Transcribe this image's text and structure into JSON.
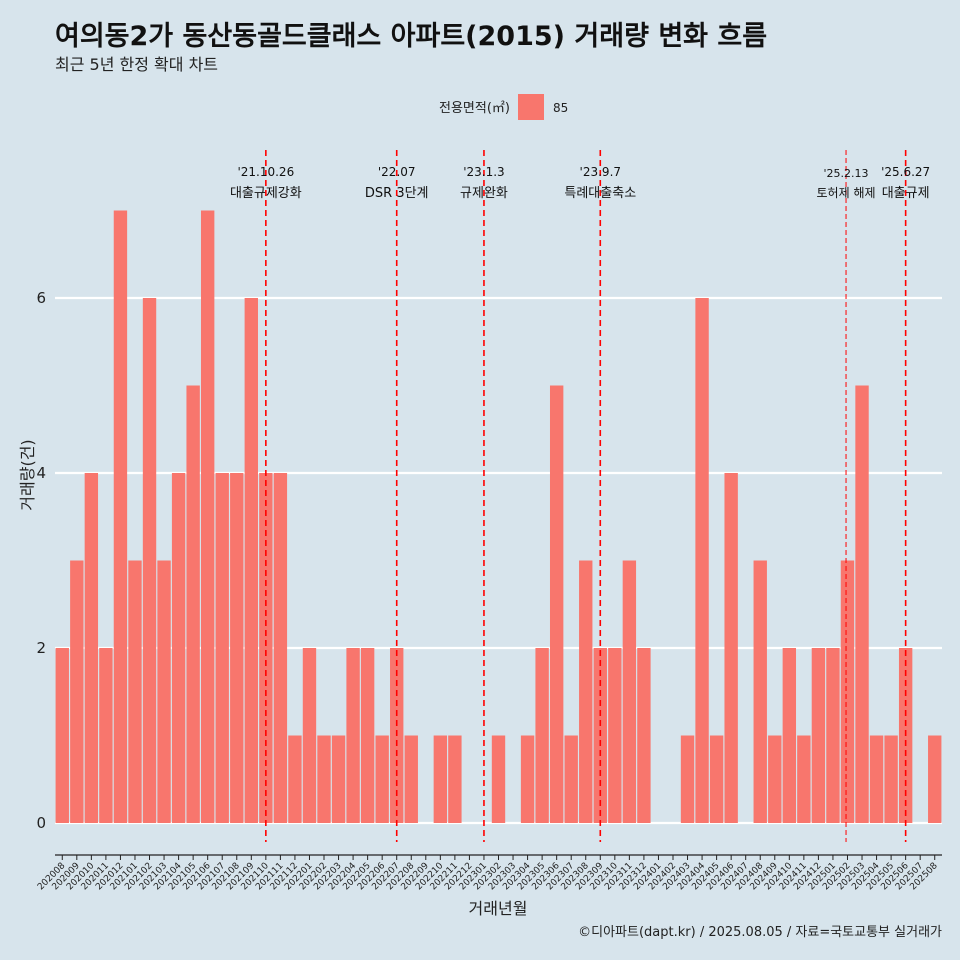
{
  "header": {
    "title": "여의동2가 동산동골드클래스 아파트(2015) 거래량 변화 흐름",
    "subtitle": "최근 5년 한정 확대 차트"
  },
  "legend": {
    "title": "전용면적(㎡)",
    "entries": [
      {
        "label": "85",
        "color": "#f8766d"
      }
    ]
  },
  "caption": "©디아파트(dapt.kr) / 2025.08.05 / 자료=국토교통부 실거래가",
  "chart_data": {
    "type": "bar",
    "xlabel": "거래년월",
    "ylabel": "거래량(건)",
    "ylim": [
      0,
      7
    ],
    "yticks": [
      0,
      2,
      4,
      6
    ],
    "grid": true,
    "legend_position": "top",
    "bar_color": "#f8766d",
    "categories": [
      "202008",
      "202009",
      "202010",
      "202011",
      "202012",
      "202101",
      "202102",
      "202103",
      "202104",
      "202105",
      "202106",
      "202107",
      "202108",
      "202109",
      "202110",
      "202111",
      "202112",
      "202201",
      "202202",
      "202203",
      "202204",
      "202205",
      "202206",
      "202207",
      "202208",
      "202209",
      "202210",
      "202211",
      "202212",
      "202301",
      "202302",
      "202303",
      "202304",
      "202305",
      "202306",
      "202307",
      "202308",
      "202309",
      "202310",
      "202311",
      "202312",
      "202401",
      "202402",
      "202403",
      "202404",
      "202405",
      "202406",
      "202407",
      "202408",
      "202409",
      "202410",
      "202411",
      "202412",
      "202501",
      "202502",
      "202503",
      "202504",
      "202505",
      "202506",
      "202507",
      "202508"
    ],
    "values": [
      2,
      3,
      4,
      2,
      7,
      3,
      6,
      3,
      4,
      5,
      7,
      4,
      4,
      6,
      4,
      4,
      1,
      2,
      1,
      1,
      2,
      2,
      1,
      2,
      1,
      0,
      1,
      1,
      0,
      0,
      1,
      0,
      1,
      2,
      5,
      1,
      3,
      2,
      2,
      3,
      2,
      0,
      0,
      1,
      6,
      1,
      4,
      0,
      3,
      1,
      2,
      1,
      2,
      2,
      3,
      5,
      1,
      1,
      2,
      0,
      1
    ],
    "events": [
      {
        "date": "'21.10.26",
        "label": "대출규제강화",
        "at": 14.5,
        "style": "dashed"
      },
      {
        "date": "'22.07",
        "label": "DSR 3단계",
        "at": 23.5,
        "style": "dashed"
      },
      {
        "date": "'23.1.3",
        "label": "규제완화",
        "at": 29.5,
        "style": "dashed"
      },
      {
        "date": "'23.9.7",
        "label": "특례대출축소",
        "at": 37.5,
        "style": "dashed"
      },
      {
        "date": "'25.2.13",
        "label": "토허제 해제",
        "at": 54.4,
        "style": "thin"
      },
      {
        "date": "'25.6.27",
        "label": "대출규제",
        "at": 58.5,
        "style": "dashed"
      }
    ]
  }
}
